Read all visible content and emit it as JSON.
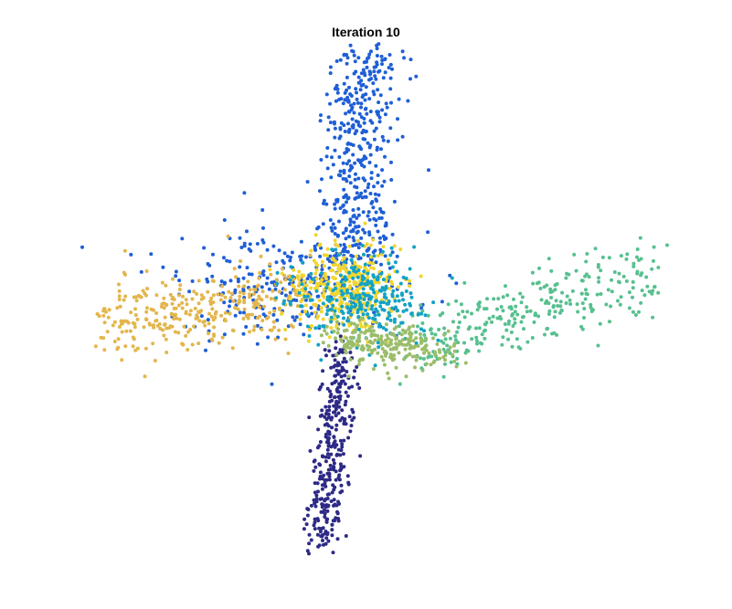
{
  "chart_data": {
    "type": "scatter",
    "title": "Iteration 10",
    "axes_visible": false,
    "grid": false,
    "legend": "none",
    "xlim": [
      -1.0,
      1.0
    ],
    "ylim": [
      -1.0,
      1.0
    ],
    "clusters": [
      {
        "color": "#1f5fd6",
        "count": 700,
        "shape": "upward arm and central mass",
        "points_rule": "seeded"
      },
      {
        "color": "#e3b64d",
        "count": 330,
        "shape": "left arm",
        "points_rule": "seeded"
      },
      {
        "color": "#57c08f",
        "count": 300,
        "shape": "right arm",
        "points_rule": "seeded"
      },
      {
        "color": "#2d2a86",
        "count": 320,
        "shape": "downward arm",
        "points_rule": "seeded"
      },
      {
        "color": "#f2d52e",
        "count": 360,
        "shape": "central core",
        "points_rule": "seeded"
      },
      {
        "color": "#13a3c4",
        "count": 260,
        "shape": "central core",
        "points_rule": "seeded"
      },
      {
        "color": "#9bbd6a",
        "count": 230,
        "shape": "lower-center blend",
        "points_rule": "seeded"
      }
    ]
  }
}
